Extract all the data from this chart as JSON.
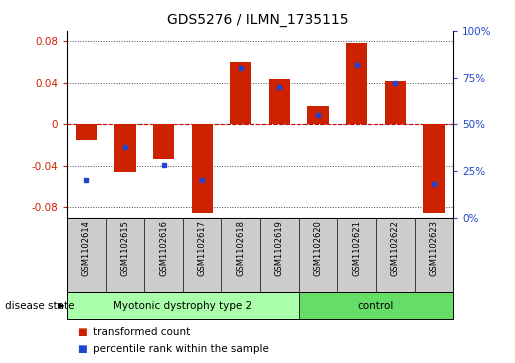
{
  "title": "GDS5276 / ILMN_1735115",
  "samples": [
    "GSM1102614",
    "GSM1102615",
    "GSM1102616",
    "GSM1102617",
    "GSM1102618",
    "GSM1102619",
    "GSM1102620",
    "GSM1102621",
    "GSM1102622",
    "GSM1102623"
  ],
  "red_values": [
    -0.015,
    -0.046,
    -0.033,
    -0.085,
    0.06,
    0.044,
    0.018,
    0.078,
    0.042,
    -0.085
  ],
  "blue_values_pct": [
    20,
    38,
    28,
    20,
    80,
    70,
    55,
    82,
    72,
    18
  ],
  "ylim": [
    -0.09,
    0.09
  ],
  "y2lim": [
    0,
    100
  ],
  "yticks": [
    -0.08,
    -0.04,
    0,
    0.04,
    0.08
  ],
  "y2ticks": [
    0,
    25,
    50,
    75,
    100
  ],
  "y2ticklabels": [
    "0%",
    "25%",
    "50%",
    "75%",
    "100%"
  ],
  "bar_color": "#CC2200",
  "blue_color": "#2244CC",
  "zero_line_color": "#CC0000",
  "grid_color": "#444444",
  "bg_color": "#FFFFFF",
  "tick_label_color_left": "#CC2200",
  "tick_label_color_right": "#2244CC",
  "disease_groups": [
    {
      "label": "Myotonic dystrophy type 2",
      "start": 0,
      "end": 5,
      "color": "#AAFFAA"
    },
    {
      "label": "control",
      "start": 6,
      "end": 9,
      "color": "#66DD66"
    }
  ],
  "disease_state_label": "disease state",
  "legend_items": [
    {
      "color": "#CC2200",
      "label": "transformed count"
    },
    {
      "color": "#2244CC",
      "label": "percentile rank within the sample"
    }
  ],
  "bar_width": 0.55,
  "label_box_color": "#CCCCCC",
  "label_box_border": "#888888"
}
